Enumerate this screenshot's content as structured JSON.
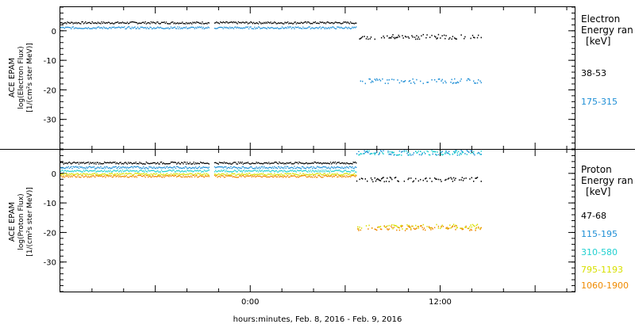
{
  "footer": {
    "xaxis_label": "hours:minutes, Feb.  8, 2016 - Feb.  9, 2016"
  },
  "x_ticks": [
    "0:00",
    "12:00"
  ],
  "chart_data": [
    {
      "type": "scatter",
      "panel": "electron",
      "ylabel": [
        "ACE EPAM",
        "log(Electron Flux)",
        "[1/(cm²s ster MeV)]"
      ],
      "legend_title": [
        "Electron",
        "Energy ran",
        "[keV]"
      ],
      "ylim": [
        -40,
        8
      ],
      "y_ticks": [
        "0",
        "-10",
        "-20",
        "-30"
      ],
      "xlim_hours": [
        -12,
        20.5
      ],
      "gap_hours": [
        -2.6,
        -2.3
      ],
      "data_end_hours": 14.6,
      "series": [
        {
          "name": "38-53",
          "color": "#000000",
          "segments": [
            {
              "x": [
                -12,
                6.7
              ],
              "y": 2.7
            },
            {
              "x": [
                6.7,
                14.6
              ],
              "y": -2.0
            }
          ]
        },
        {
          "name": "175-315",
          "color": "#1f8fd6",
          "segments": [
            {
              "x": [
                -12,
                6.7
              ],
              "y": 1.0
            },
            {
              "x": [
                6.7,
                14.6
              ],
              "y": -17.0
            }
          ]
        }
      ]
    },
    {
      "type": "scatter",
      "panel": "proton",
      "ylabel": [
        "ACE EPAM",
        "log(Proton Flux)",
        "[1/(cm²s ster MeV)]"
      ],
      "legend_title": [
        "Proton",
        "Energy ran",
        "[keV]"
      ],
      "ylim": [
        -40,
        8
      ],
      "y_ticks": [
        "0",
        "-10",
        "-20",
        "-30"
      ],
      "xlim_hours": [
        -12,
        20.5
      ],
      "gap_hours": [
        -2.6,
        -2.3
      ],
      "data_end_hours": 14.6,
      "series": [
        {
          "name": "47-68",
          "color": "#000000",
          "segments": [
            {
              "x": [
                -12,
                6.7
              ],
              "y": 3.5
            },
            {
              "x": [
                6.7,
                14.6
              ],
              "y": -2.0
            }
          ]
        },
        {
          "name": "115-195",
          "color": "#1f8fd6",
          "segments": [
            {
              "x": [
                -12,
                6.7
              ],
              "y": 2.0
            },
            {
              "x": [
                6.7,
                14.6
              ],
              "y": 7.0
            }
          ]
        },
        {
          "name": "310-580",
          "color": "#22d0d0",
          "segments": [
            {
              "x": [
                -12,
                6.7
              ],
              "y": 0.8
            },
            {
              "x": [
                6.7,
                14.6
              ],
              "y": 7.0
            }
          ]
        },
        {
          "name": "795-1193",
          "color": "#d8e000",
          "segments": [
            {
              "x": [
                -12,
                6.7
              ],
              "y": -0.3
            },
            {
              "x": [
                6.7,
                14.6
              ],
              "y": -18.0
            }
          ]
        },
        {
          "name": "1060-1900",
          "color": "#ef8a00",
          "segments": [
            {
              "x": [
                -12,
                6.7
              ],
              "y": -1.0
            },
            {
              "x": [
                6.7,
                14.6
              ],
              "y": -18.5
            }
          ]
        }
      ]
    }
  ]
}
